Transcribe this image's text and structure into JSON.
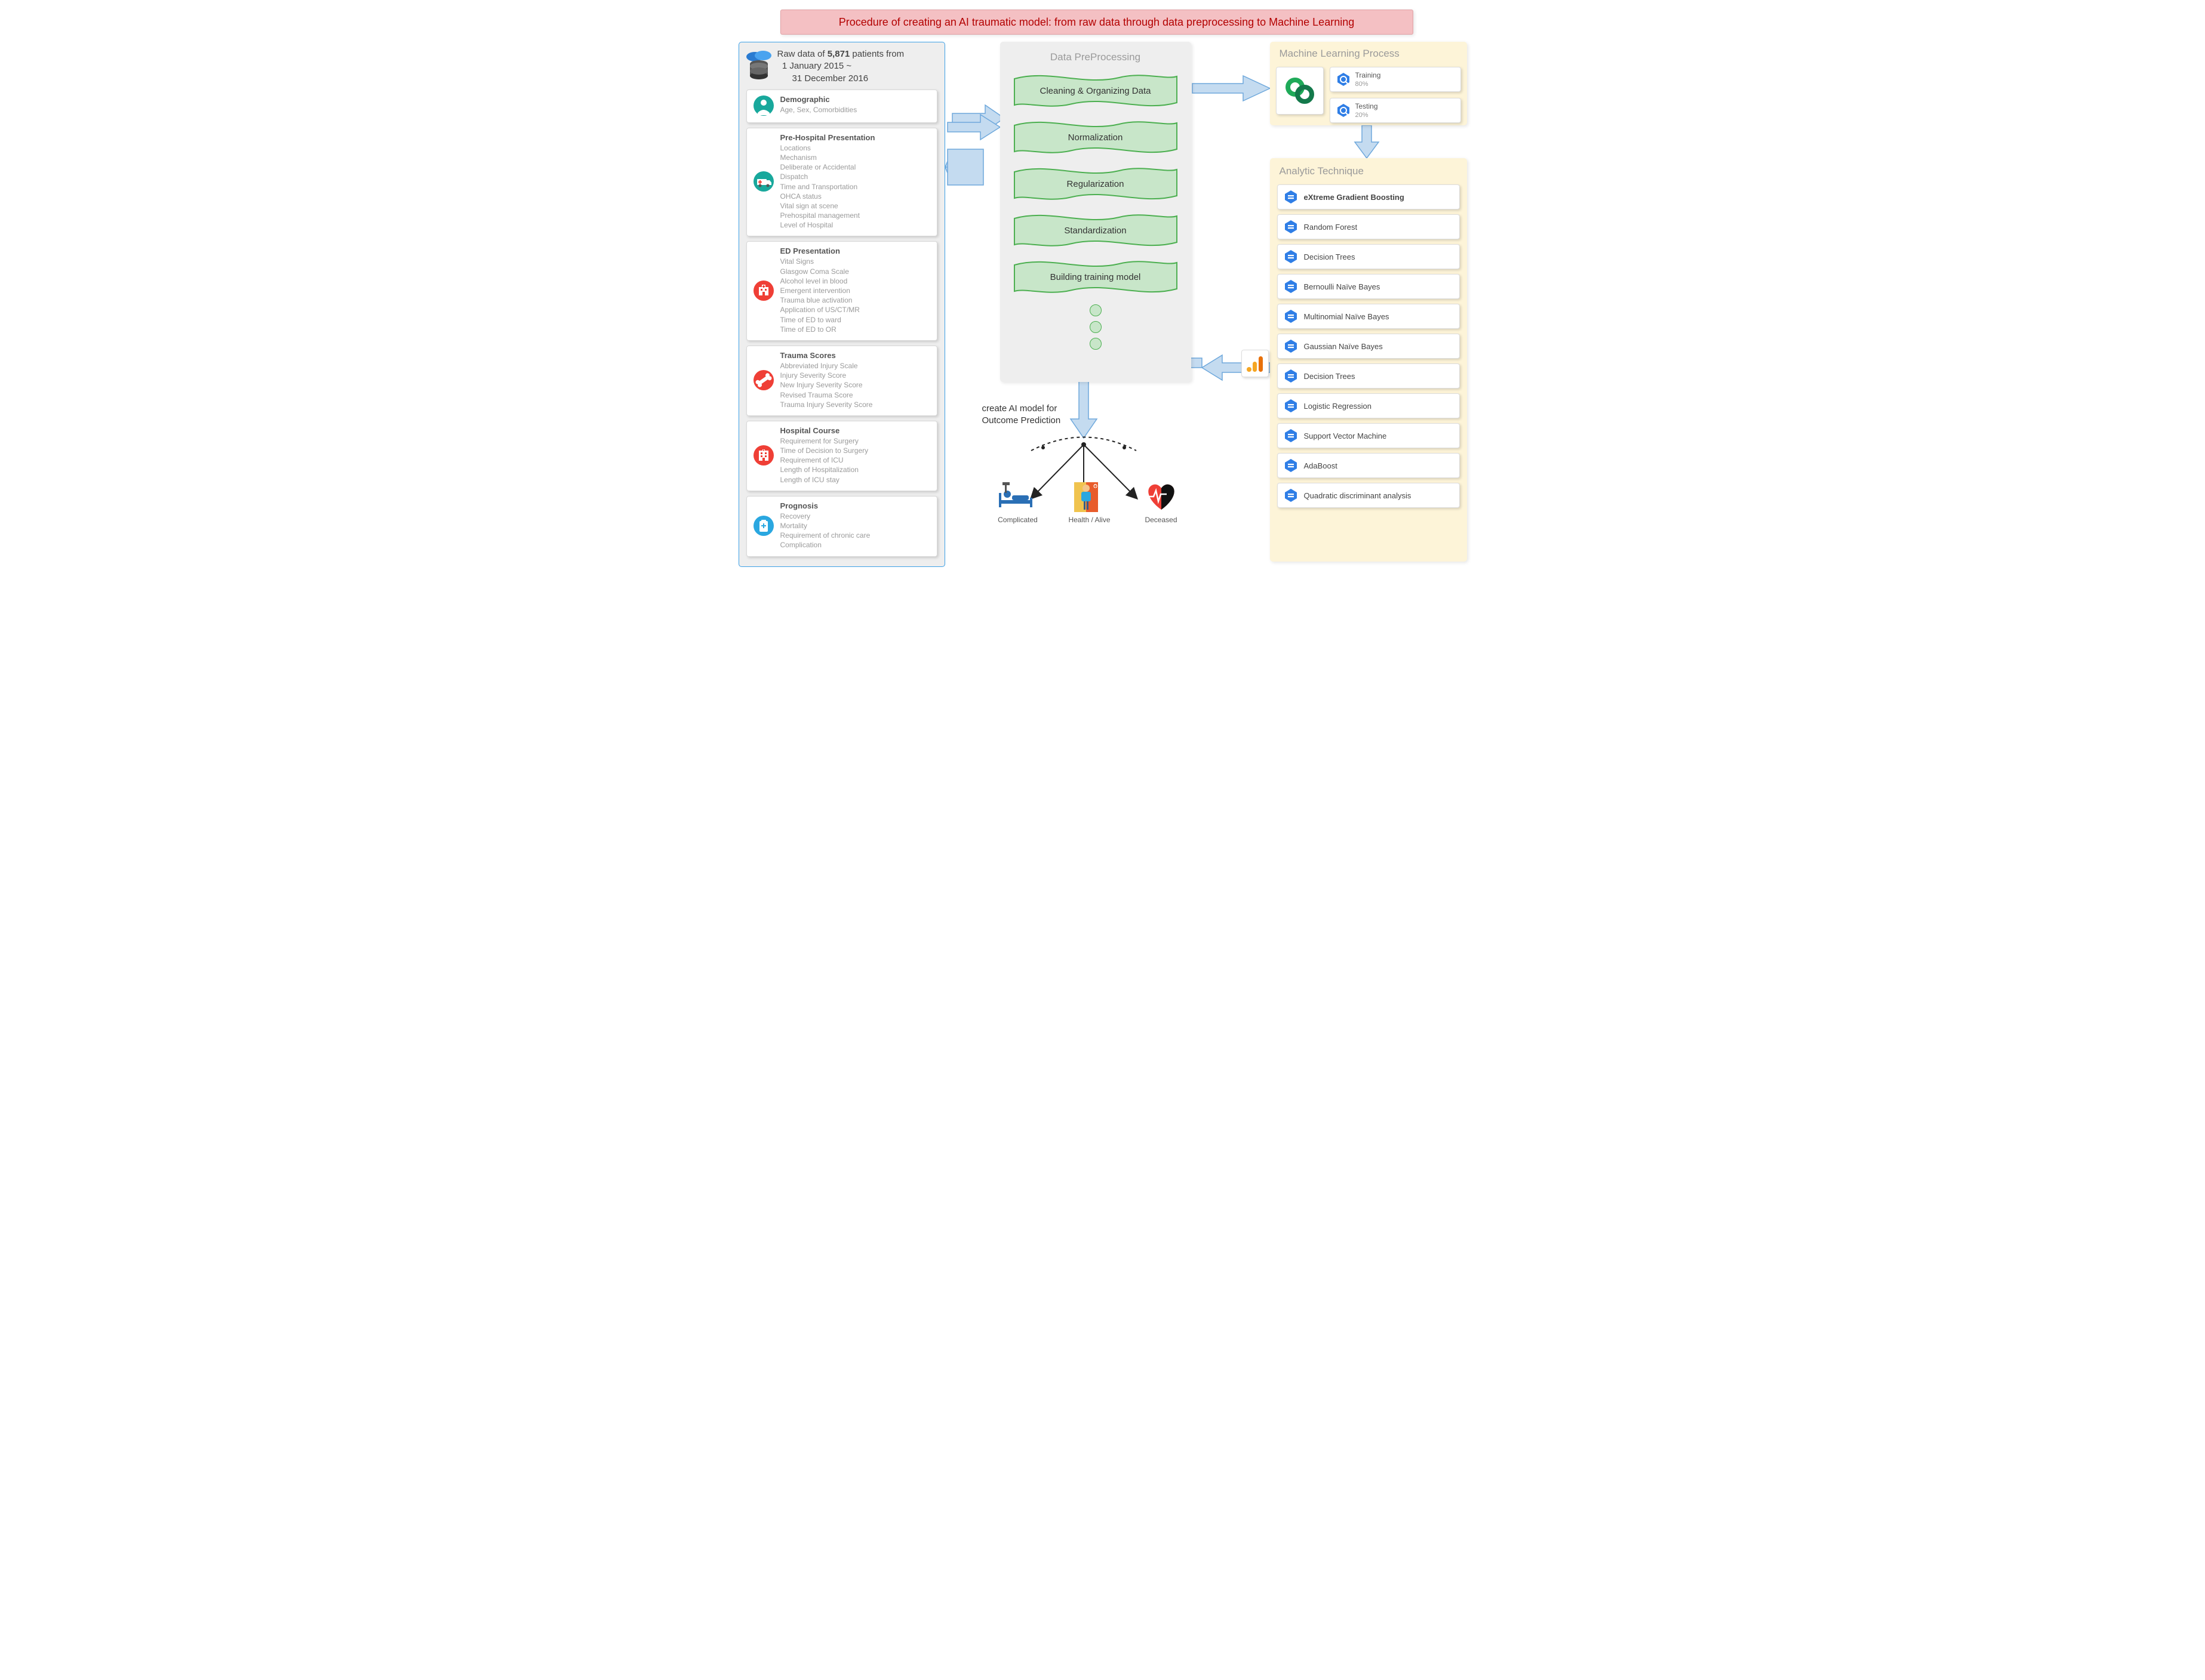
{
  "title": "Procedure of creating an AI traumatic model: from raw data through data preprocessing to Machine Learning",
  "colors": {
    "title_bg": "#f4c0c3",
    "title_text": "#b30000",
    "raw_bg": "#eeeeee",
    "raw_border": "#3ca0e6",
    "preproc_bg": "#eeeeee",
    "ml_bg": "#fdf4d8",
    "arrow_fill": "#c4dbf0",
    "arrow_stroke": "#6ea8dc",
    "wave_fill": "#c8e6c9",
    "wave_stroke": "#4caf50",
    "subtext": "#9a9a9a",
    "icon_teal": "#18a89c",
    "icon_red": "#ef3f36",
    "icon_blue": "#2aa7e0",
    "hex_blue": "#2f7ee6"
  },
  "raw": {
    "header_l1_a": "Raw data of ",
    "header_l1_b": "5,871",
    "header_l1_c": " patients from",
    "header_l2": "1 January 2015 ~",
    "header_l3": "31 December 2016",
    "cards": [
      {
        "icon": "user",
        "icon_color": "#18a89c",
        "title": "Demographic",
        "sub": "Age, Sex, Comorbidities"
      },
      {
        "icon": "ambulance",
        "icon_color": "#18a89c",
        "title": "Pre-Hospital Presentation",
        "sub": "Locations\nMechanism\nDeliberate or Accidental\nDispatch\nTime and Transportation\nOHCA status\nVital sign at scene\nPrehospital management\nLevel of Hospital"
      },
      {
        "icon": "hospital",
        "icon_color": "#ef3f36",
        "title": "ED Presentation",
        "sub": "Vital Signs\nGlasgow Coma Scale\nAlcohol level in blood\nEmergent intervention\nTrauma blue activation\nApplication of US/CT/MR\nTime of ED to ward\nTime of ED to OR"
      },
      {
        "icon": "bone",
        "icon_color": "#ef3f36",
        "title": "Trauma Scores",
        "sub": "Abbreviated Injury Scale\nInjury Severity Score\nNew Injury Severity Score\nRevised Trauma Score\nTrauma Injury Severity Score"
      },
      {
        "icon": "building",
        "icon_color": "#ef3f36",
        "title": "Hospital Course",
        "sub": "Requirement for Surgery\nTime of Decision to Surgery\nRequirement of ICU\nLength of Hospitalization\nLength of ICU stay"
      },
      {
        "icon": "clipboard",
        "icon_color": "#2aa7e0",
        "title": "Prognosis",
        "sub": "Recovery\nMortality\nRequirement of chronic care\nComplication"
      }
    ]
  },
  "preprocessing": {
    "title": "Data PreProcessing",
    "steps": [
      "Cleaning & Organizing Data",
      "Normalization",
      "Regularization",
      "Standardization",
      "Building training model"
    ]
  },
  "ml": {
    "title": "Machine Learning Process",
    "training_label": "Training",
    "training_pct": "80%",
    "testing_label": "Testing",
    "testing_pct": "20%"
  },
  "analytic": {
    "title": "Analytic Technique",
    "items": [
      {
        "label": "eXtreme Gradient Boosting",
        "bold": true
      },
      {
        "label": "Random Forest"
      },
      {
        "label": "Decision Trees"
      },
      {
        "label": "Bernoulli Naïve Bayes"
      },
      {
        "label": "Multinomial Naïve Bayes"
      },
      {
        "label": "Gaussian Naïve Bayes"
      },
      {
        "label": "Decision Trees"
      },
      {
        "label": "Logistic Regression"
      },
      {
        "label": "Support Vector Machine"
      },
      {
        "label": "AdaBoost"
      },
      {
        "label": "Quadratic discriminant analysis"
      }
    ]
  },
  "outcome": {
    "title_l1": "create AI model for",
    "title_l2": "Outcome Prediction",
    "items": [
      {
        "label": "Complicated",
        "icon": "bed"
      },
      {
        "label": "Health / Alive",
        "icon": "healthy"
      },
      {
        "label": "Deceased",
        "icon": "heart"
      }
    ]
  }
}
